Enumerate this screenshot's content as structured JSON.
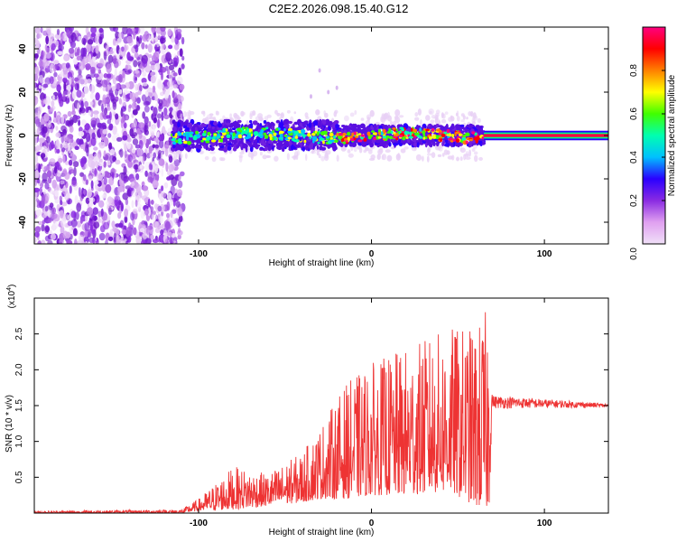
{
  "title": "C2E2.2026.098.15.40.G12",
  "chart_data": [
    {
      "type": "heatmap",
      "title": "C2E2.2026.098.15.40.G12",
      "xlabel": "Height of straight line (km)",
      "ylabel": "Frequency (Hz)",
      "xlim": [
        -195,
        137
      ],
      "ylim": [
        -50,
        50
      ],
      "x_ticks": [
        -100,
        0,
        100
      ],
      "y_ticks": [
        -40,
        -20,
        0,
        20,
        40
      ],
      "x_tick_labels": [
        "-100",
        "0",
        "100"
      ],
      "y_tick_labels": [
        "-40",
        "-20",
        "0",
        "20",
        "40"
      ],
      "colorbar": {
        "label": "Normalized spectral amplitude",
        "range": [
          0,
          1
        ],
        "ticks": [
          0.0,
          0.2,
          0.4,
          0.6,
          0.8
        ],
        "tick_labels": [
          "0.0",
          "0.2",
          "0.4",
          "0.6",
          "0.8"
        ],
        "colors": [
          "#f0e0f8",
          "#e0a0f0",
          "#8a2be2",
          "#2a00ff",
          "#00c0ff",
          "#00ffb0",
          "#40ff00",
          "#ffff00",
          "#ff8000",
          "#ff0000",
          "#ff0080"
        ]
      },
      "regions": {
        "noise_end_km": -115,
        "band_start_km": -115,
        "stable_start_km": 65,
        "band_center_hz": 0,
        "band_halfwidth_hz": 4
      }
    },
    {
      "type": "line",
      "xlabel": "Height of straight line (km)",
      "ylabel": "SNR (10 * v/v)",
      "y_scale_label": "(x10",
      "y_scale_exp": "4",
      "y_scale_close": ")",
      "xlim": [
        -195,
        137
      ],
      "ylim": [
        0,
        3.0
      ],
      "x_ticks": [
        -100,
        0,
        100
      ],
      "y_ticks": [
        0.5,
        1.0,
        1.5,
        2.0,
        2.5
      ],
      "x_tick_labels": [
        "-100",
        "0",
        "100"
      ],
      "y_tick_labels": [
        "0.5",
        "1.0",
        "1.5",
        "2.0",
        "2.5"
      ],
      "color": "#ee3333",
      "envelope": [
        {
          "x": -195,
          "lo": 0.0,
          "hi": 0.03
        },
        {
          "x": -110,
          "lo": 0.0,
          "hi": 0.05
        },
        {
          "x": -100,
          "lo": 0.03,
          "hi": 0.2
        },
        {
          "x": -80,
          "lo": 0.05,
          "hi": 0.65
        },
        {
          "x": -60,
          "lo": 0.1,
          "hi": 0.55
        },
        {
          "x": -40,
          "lo": 0.15,
          "hi": 0.85
        },
        {
          "x": -30,
          "lo": 0.2,
          "hi": 1.2
        },
        {
          "x": -15,
          "lo": 0.2,
          "hi": 1.8
        },
        {
          "x": 0,
          "lo": 0.25,
          "hi": 2.1
        },
        {
          "x": 20,
          "lo": 0.25,
          "hi": 2.3
        },
        {
          "x": 45,
          "lo": 0.3,
          "hi": 2.6
        },
        {
          "x": 60,
          "lo": 0.1,
          "hi": 2.6
        },
        {
          "x": 68,
          "lo": 0.05,
          "hi": 2.9
        },
        {
          "x": 70,
          "lo": 1.45,
          "hi": 1.65
        },
        {
          "x": 137,
          "lo": 1.47,
          "hi": 1.53
        }
      ]
    }
  ]
}
